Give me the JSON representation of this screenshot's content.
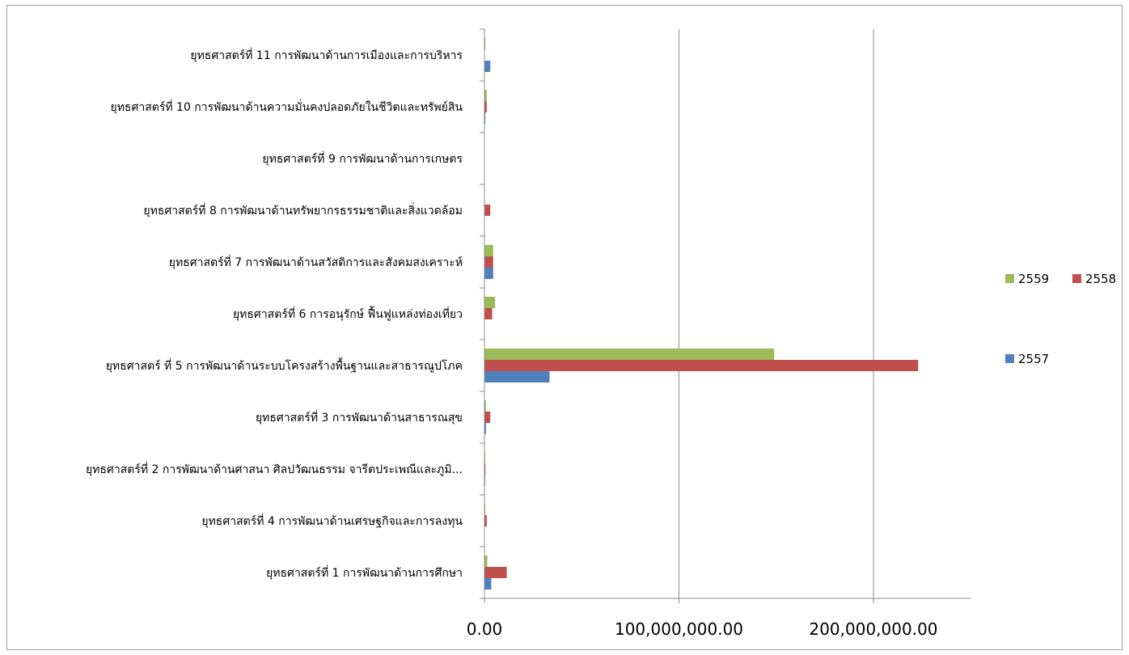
{
  "chart_data": {
    "type": "bar",
    "orientation": "horizontal",
    "categories": [
      "ยุทธศาสตร์ที่ 1 การพัฒนาด้านการศึกษา",
      "ยุทธศาสตร์ที่ 4 การพัฒนาด้านเศรษฐกิจและการลงทุน",
      "ยุทธศาสตร์ที่ 2 การพัฒนาด้านศาสนา ศิลปวัฒนธรรม จารีตประเพณีและภูมิ...",
      "ยุทธศาสตร์ที่ 3 การพัฒนาด้านสาธารณสุข",
      "ยุทธศาสตร์ ที่ 5 การพัฒนาด้านระบบโครงสร้างพื้นฐานและสาธารณูปโภค",
      "ยุทธศาสตร์ที่ 6 การอนุรักษ์ ฟื้นฟูแหล่งท่องเที่ยว",
      "ยุทธศาสตร์ที่ 7 การพัฒนาด้านสวัสดิการและสังคมสงเคราะห์",
      "ยุทธศาสตร์ที่ 8 การพัฒนาด้านทรัพยากรธรรมชาติและสิ่งแวดล้อม",
      "ยุทธศาสตร์ที่ 9 การพัฒนาด้านการเกษตร",
      "ยุทธศาสตร์ที่ 10 การพัฒนาด้านความมั่นคงปลอดภัยในชีวิตและทรัพย์สิน",
      "ยุทธศาสตร์ที่ 11 การพัฒนาด้านการเมืองและการบริหาร"
    ],
    "series": [
      {
        "name": "2559",
        "color": "#9bbb59",
        "values": [
          1500000,
          200000,
          300000,
          800000,
          149000000,
          5500000,
          4500000,
          0,
          0,
          1200000,
          500000
        ]
      },
      {
        "name": "2558",
        "color": "#c0504d",
        "values": [
          11500000,
          1200000,
          500000,
          3000000,
          223000000,
          4000000,
          4500000,
          3000000,
          0,
          1200000,
          0
        ]
      },
      {
        "name": "2557",
        "color": "#4f81bd",
        "values": [
          3500000,
          0,
          300000,
          800000,
          33500000,
          0,
          4500000,
          0,
          0,
          500000,
          3000000
        ]
      }
    ],
    "xlim": [
      0,
      250000000
    ],
    "xticks": [
      0,
      100000000,
      200000000
    ],
    "xtick_labels": [
      "0.00",
      "100,000,000.00",
      "200,000,000.00"
    ],
    "grid": "vertical",
    "legend": {
      "position": "right",
      "entries": [
        "2559",
        "2558",
        "2557"
      ]
    },
    "title": "",
    "xlabel": "",
    "ylabel": ""
  }
}
